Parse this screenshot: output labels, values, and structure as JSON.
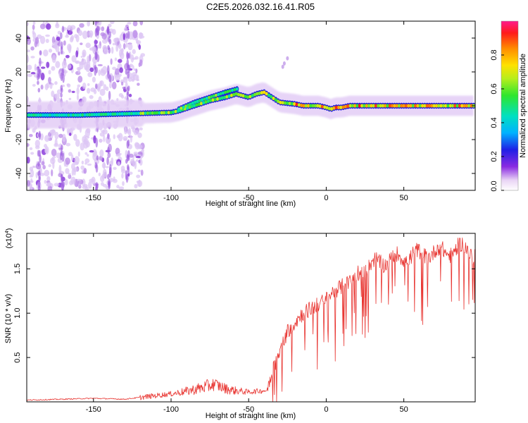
{
  "title": "C2E5.2026.032.16.41.R05",
  "chart_data": [
    {
      "type": "heatmap",
      "xlabel": "Height of straight line (km)",
      "ylabel": "Frequency (Hz)",
      "xlim": [
        -193,
        96
      ],
      "ylim": [
        -50,
        50
      ],
      "x_ticks": [
        -150,
        -100,
        -50,
        0,
        50
      ],
      "x_tick_labels": [
        "-150",
        "-100",
        "-50",
        "0",
        "50"
      ],
      "y_ticks": [
        -40,
        -20,
        0,
        20,
        40
      ],
      "y_tick_labels": [
        "-40",
        "-20",
        "0",
        "20",
        "40"
      ],
      "ridge": {
        "description": "dominant frequency track (Hz) vs height (km)",
        "x": [
          -193,
          -160,
          -120,
          -100,
          -95,
          -85,
          -75,
          -65,
          -58,
          -50,
          -45,
          -40,
          -35,
          -30,
          -25,
          -20,
          -15,
          -10,
          -5,
          0,
          3,
          6,
          10,
          15,
          20,
          30,
          50,
          70,
          93
        ],
        "y": [
          -5.5,
          -5.5,
          -4.5,
          -4,
          -3,
          0,
          3,
          5,
          7,
          5,
          7,
          8,
          5,
          2,
          1.5,
          1,
          0,
          0,
          0,
          -1,
          -2,
          -1,
          -1,
          0,
          0,
          0,
          0,
          0,
          0
        ]
      },
      "upper_branch": {
        "x": [
          -95,
          -85,
          -75,
          -65,
          -57
        ],
        "y": [
          -2,
          2,
          5,
          8,
          10
        ]
      },
      "faint_streak": {
        "x": [
          -28,
          -27,
          -25
        ],
        "y": [
          23,
          25,
          28
        ]
      },
      "noise_region_x": [
        -193,
        -118
      ]
    },
    {
      "type": "colorbar",
      "label": "Normalized spectral amplitude",
      "range": [
        0,
        1
      ],
      "ticks": [
        "0.0",
        "0.2",
        "0.4",
        "0.6",
        "0.8"
      ],
      "tick_values": [
        0,
        0.2,
        0.4,
        0.6,
        0.8
      ]
    },
    {
      "type": "line",
      "xlabel": "Height of straight line (km)",
      "ylabel": "SNR (10 * v/v)",
      "scale_label": "(x10⁴)",
      "scale_base": "(x10",
      "scale_exp": "4",
      "scale_close": ")",
      "xlim": [
        -193,
        96
      ],
      "ylim": [
        0,
        1.9
      ],
      "x_ticks": [
        -150,
        -100,
        -50,
        0,
        50
      ],
      "x_tick_labels": [
        "-150",
        "-100",
        "-50",
        "0",
        "50"
      ],
      "y_ticks": [
        0.5,
        1.0,
        1.5
      ],
      "y_tick_labels": [
        "0.5",
        "1.0",
        "1.5"
      ],
      "color": "#e8332f",
      "series": [
        {
          "name": "SNR",
          "baseline": {
            "description": "approximate smoothed SNR level (x10^4) vs height (km)",
            "x": [
              -193,
              -170,
              -150,
              -130,
              -120,
              -110,
              -100,
              -90,
              -80,
              -72,
              -65,
              -60,
              -55,
              -50,
              -45,
              -38,
              -35,
              -30,
              -25,
              -20,
              -15,
              -10,
              -5,
              0,
              5,
              10,
              15,
              20,
              25,
              30,
              35,
              40,
              45,
              50,
              55,
              60,
              65,
              70,
              75,
              80,
              85,
              90,
              96
            ],
            "y": [
              0.02,
              0.03,
              0.04,
              0.03,
              0.05,
              0.07,
              0.09,
              0.12,
              0.16,
              0.2,
              0.15,
              0.13,
              0.12,
              0.11,
              0.12,
              0.13,
              0.35,
              0.55,
              0.8,
              0.9,
              1.0,
              1.05,
              1.1,
              1.15,
              1.25,
              1.3,
              1.35,
              1.45,
              1.5,
              1.55,
              1.58,
              1.6,
              1.62,
              1.63,
              1.65,
              1.66,
              1.68,
              1.68,
              1.7,
              1.7,
              1.72,
              1.75,
              1.65
            ]
          }
        }
      ]
    }
  ]
}
